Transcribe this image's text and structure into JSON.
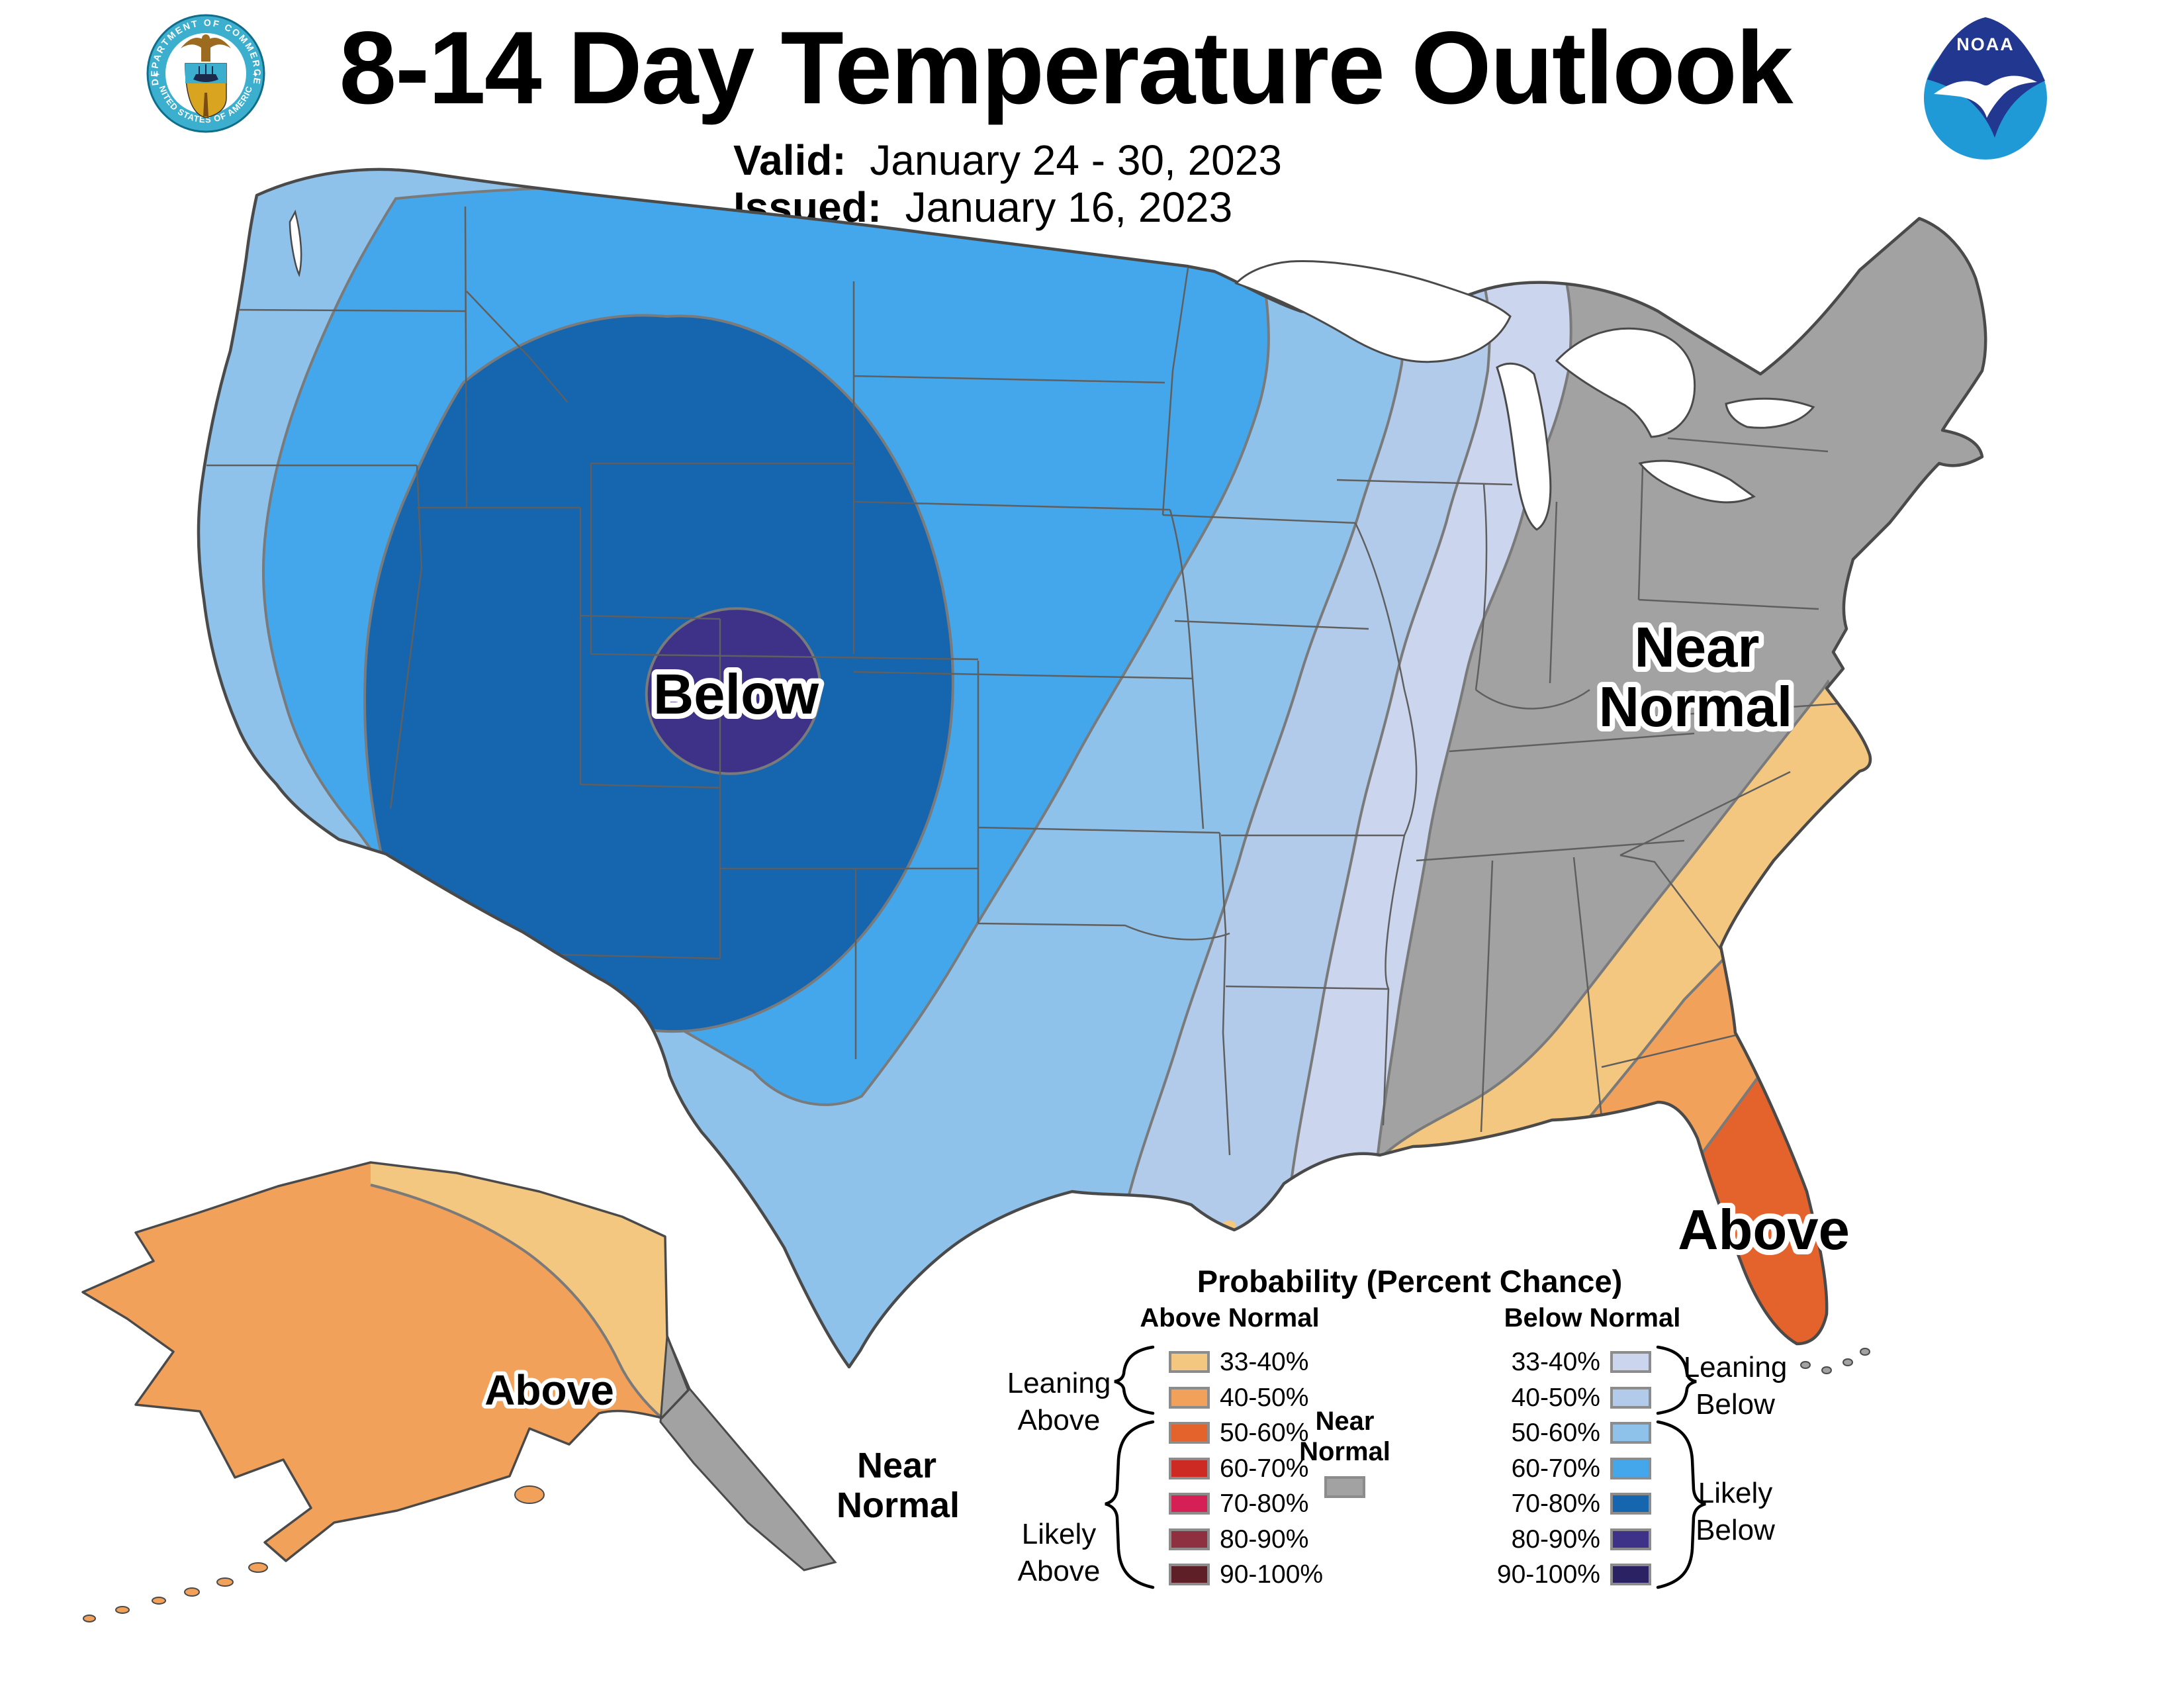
{
  "header": {
    "title": "8-14 Day Temperature Outlook",
    "valid_label": "Valid:",
    "valid_value": "January 24 - 30, 2023",
    "issued_label": "Issued:",
    "issued_value": "January 16, 2023"
  },
  "logos": {
    "noaa_text": "NOAA",
    "doc_top_text": "DEPARTMENT OF COMMERCE",
    "doc_bottom_text": "UNITED STATES OF AMERICA"
  },
  "map_labels": {
    "below": "Below",
    "near_line1": "Near",
    "near_line2": "Normal",
    "above_florida": "Above",
    "alaska_above": "Above",
    "alaska_near_line1": "Near",
    "alaska_near_line2": "Normal"
  },
  "legend": {
    "title": "Probability (Percent Chance)",
    "above_header": "Above Normal",
    "below_header": "Below Normal",
    "near_normal": "Near\nNormal",
    "percent_labels": [
      "33-40%",
      "40-50%",
      "50-60%",
      "60-70%",
      "70-80%",
      "80-90%",
      "90-100%"
    ],
    "leaning_above": "Leaning\nAbove",
    "likely_above": "Likely\nAbove",
    "leaning_below": "Leaning\nBelow",
    "likely_below": "Likely\nBelow"
  },
  "colors": {
    "above": [
      "#F3C77F",
      "#F1A159",
      "#E4622C",
      "#CE2A24",
      "#D61F55",
      "#8E3040",
      "#5F1F26"
    ],
    "below": [
      "#CCD5EE",
      "#B3CBEA",
      "#8FC2EA",
      "#44A7EB",
      "#1565AF",
      "#3E3288",
      "#2B2263"
    ],
    "near_normal": "#A2A2A2",
    "contour_line": "#7A7A7A",
    "state_line": "#5F5F5F",
    "coast_line": "#4A4A4A",
    "lake_fill": "#FFFFFF",
    "noaa_dark_blue": "#22378F",
    "noaa_light_blue": "#1F9AD6",
    "seal_ring": "#3CAFCE",
    "seal_gold": "#D9A520"
  }
}
